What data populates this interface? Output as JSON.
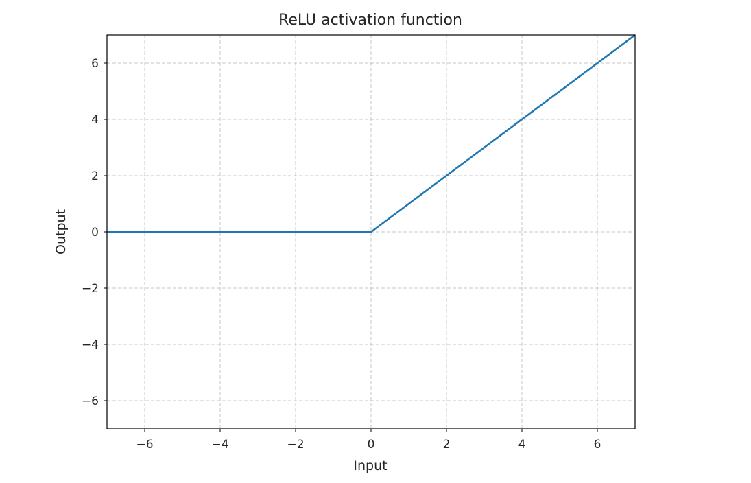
{
  "chart_data": {
    "type": "line",
    "title": "ReLU activation function",
    "xlabel": "Input",
    "ylabel": "Output",
    "xlim": [
      -7,
      7
    ],
    "ylim": [
      -7,
      7
    ],
    "xticks": [
      -6,
      -4,
      -2,
      0,
      2,
      4,
      6
    ],
    "yticks": [
      -6,
      -4,
      -2,
      0,
      2,
      4,
      6
    ],
    "xtick_labels": [
      "−6",
      "−4",
      "−2",
      "0",
      "2",
      "4",
      "6"
    ],
    "ytick_labels": [
      "−6",
      "−4",
      "−2",
      "0",
      "2",
      "4",
      "6"
    ],
    "grid": true,
    "series": [
      {
        "color": "#1f77b4",
        "x": [
          -7,
          0,
          7
        ],
        "y": [
          0,
          0,
          7
        ]
      }
    ]
  }
}
